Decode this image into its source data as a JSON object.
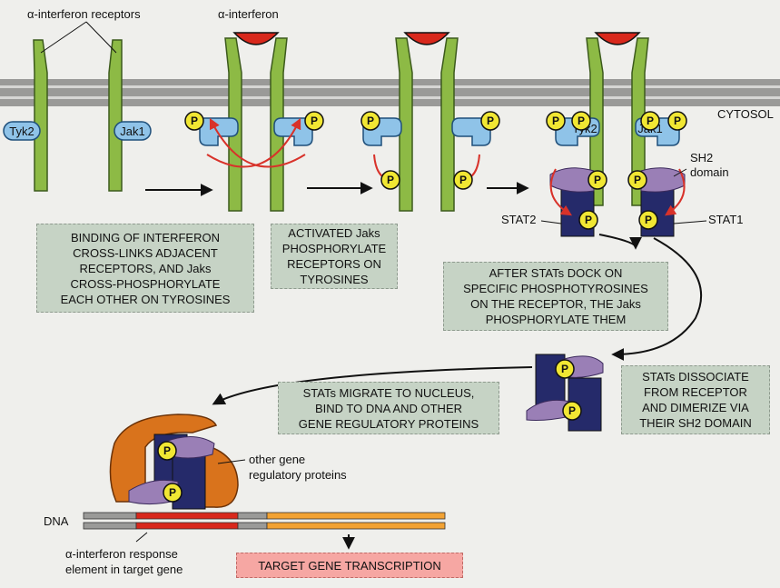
{
  "labels": {
    "receptors": "α-interferon receptors",
    "interferon": "α-interferon",
    "cytosol": "CYTOSOL",
    "tyk2": "Tyk2",
    "jak1": "Jak1",
    "sh2": "SH2",
    "domain": "domain",
    "stat2": "STAT2",
    "stat1": "STAT1",
    "p": "P",
    "other_line1": "other gene",
    "other_line2": "regulatory proteins",
    "dna": "DNA",
    "response_line1": "α-interferon response",
    "response_line2": "element in target gene"
  },
  "boxes": {
    "binding": "BINDING OF INTERFERON\nCROSS-LINKS ADJACENT\nRECEPTORS, AND Jaks\nCROSS-PHOSPHORYLATE\nEACH OTHER ON TYROSINES",
    "activated": "ACTIVATED Jaks\nPHOSPHORYLATE\nRECEPTORS ON\nTYROSINES",
    "dock": "AFTER STATs DOCK ON\nSPECIFIC PHOSPHOTYROSINES\nON THE RECEPTOR, THE Jaks\nPHOSPHORYLATE THEM",
    "migrate": "STATs MIGRATE TO NUCLEUS,\nBIND TO DNA AND OTHER\nGENE REGULATORY PROTEINS",
    "dissociate": "STATs DISSOCIATE\nFROM RECEPTOR\nAND DIMERIZE VIA\nTHEIR SH2 DOMAIN",
    "target": "TARGET GENE TRANSCRIPTION"
  },
  "colors": {
    "receptor": "#8dba45",
    "jak": "#8fc3e8",
    "interferon": "#d8281c",
    "stat_dark": "#252a6a",
    "stat_light": "#9a7fb6",
    "phosphate": "#f1e733",
    "regulator": "#d9731c",
    "arrow_red": "#d8322a",
    "dna_red": "#d8281c",
    "dna_orange": "#f2a233",
    "box": "#c6d3c5",
    "target_box": "#f6a7a3"
  }
}
